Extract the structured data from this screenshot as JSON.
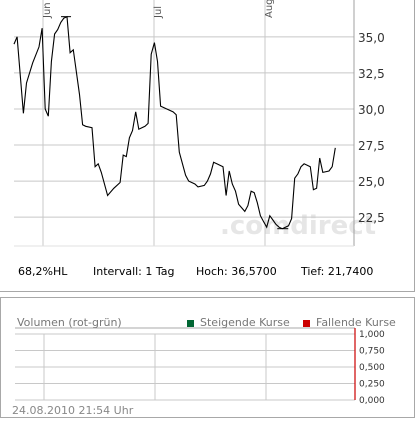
{
  "chart_data": [
    {
      "type": "line",
      "title": "",
      "x_tick_labels": [
        "Jun",
        "Jul",
        "Aug"
      ],
      "y_tick_labels": [
        "35,0",
        "32,5",
        "30,0",
        "27,5",
        "25,0",
        "22,5"
      ],
      "ylim": [
        20.5,
        37.0
      ],
      "xlim": [
        0,
        109
      ],
      "grid": true,
      "watermark": ".comdirect",
      "series": [
        {
          "values": [
            [
              0,
              34.5
            ],
            [
              1,
              35.0
            ],
            [
              3,
              29.7
            ],
            [
              4,
              31.8
            ],
            [
              6,
              33.2
            ],
            [
              8,
              34.3
            ],
            [
              9,
              35.6
            ],
            [
              10,
              30.0
            ],
            [
              11,
              29.5
            ],
            [
              12,
              33.3
            ],
            [
              13,
              35.2
            ],
            [
              14,
              35.5
            ],
            [
              15,
              36.0
            ],
            [
              16,
              36.3
            ],
            [
              17,
              36.4
            ],
            [
              18,
              33.9
            ],
            [
              19,
              34.1
            ],
            [
              21,
              31.0
            ],
            [
              22,
              28.9
            ],
            [
              23,
              28.8
            ],
            [
              25,
              28.7
            ],
            [
              26,
              26.0
            ],
            [
              27,
              26.2
            ],
            [
              28,
              25.6
            ],
            [
              30,
              24.0
            ],
            [
              32,
              24.5
            ],
            [
              34,
              24.9
            ],
            [
              35,
              26.8
            ],
            [
              36,
              26.7
            ],
            [
              37,
              28.0
            ],
            [
              38,
              28.5
            ],
            [
              39,
              29.8
            ],
            [
              40,
              28.6
            ],
            [
              42,
              28.8
            ],
            [
              43,
              29.0
            ],
            [
              44,
              33.8
            ],
            [
              45,
              34.6
            ],
            [
              46,
              33.3
            ],
            [
              47,
              30.2
            ],
            [
              49,
              30.0
            ],
            [
              51,
              29.8
            ],
            [
              52,
              29.6
            ],
            [
              53,
              27.0
            ],
            [
              55,
              25.4
            ],
            [
              56,
              25.0
            ],
            [
              58,
              24.8
            ],
            [
              59,
              24.6
            ],
            [
              61,
              24.7
            ],
            [
              62,
              25.0
            ],
            [
              63,
              25.5
            ],
            [
              64,
              26.3
            ],
            [
              65,
              26.2
            ],
            [
              66,
              26.1
            ],
            [
              67,
              26.0
            ],
            [
              68,
              24.0
            ],
            [
              69,
              25.7
            ],
            [
              70,
              24.8
            ],
            [
              71,
              24.3
            ],
            [
              72,
              23.4
            ],
            [
              74,
              22.9
            ],
            [
              75,
              23.3
            ],
            [
              76,
              24.3
            ],
            [
              77,
              24.2
            ],
            [
              78,
              23.5
            ],
            [
              79,
              22.6
            ],
            [
              80,
              22.2
            ],
            [
              81,
              21.8
            ],
            [
              82,
              22.6
            ],
            [
              83,
              22.3
            ],
            [
              84,
              22.0
            ],
            [
              85,
              21.8
            ],
            [
              86,
              21.7
            ],
            [
              88,
              21.9
            ],
            [
              89,
              22.4
            ],
            [
              90,
              25.2
            ],
            [
              91,
              25.5
            ],
            [
              92,
              26.0
            ],
            [
              93,
              26.2
            ],
            [
              94,
              26.1
            ],
            [
              95,
              26.0
            ],
            [
              96,
              24.4
            ],
            [
              97,
              24.5
            ],
            [
              98,
              26.6
            ],
            [
              99,
              25.6
            ],
            [
              101,
              25.7
            ],
            [
              102,
              26.0
            ],
            [
              103,
              27.3
            ]
          ]
        }
      ],
      "stats": {
        "hl": "68,2%HL",
        "interval": "Intervall: 1 Tag",
        "high": "Hoch: 36,5700",
        "low": "Tief: 21,7400"
      }
    },
    {
      "type": "bar",
      "title": "Volumen (rot-grün)",
      "y_tick_labels": [
        "1,000",
        "0,750",
        "0,500",
        "0,250",
        "0,000"
      ],
      "ylim": [
        0,
        1
      ],
      "series": [
        {
          "name": "Steigende Kurse",
          "color": "#006633",
          "values": []
        },
        {
          "name": "Fallende Kurse",
          "color": "#cc0000",
          "values": []
        }
      ]
    }
  ],
  "footer": {
    "timestamp": "24.08.2010 21:54 Uhr"
  },
  "colors": {
    "line": "#000000",
    "grid": "#c8c8c8",
    "axis": "#a0a0a0",
    "accent_red": "#cc0000"
  }
}
